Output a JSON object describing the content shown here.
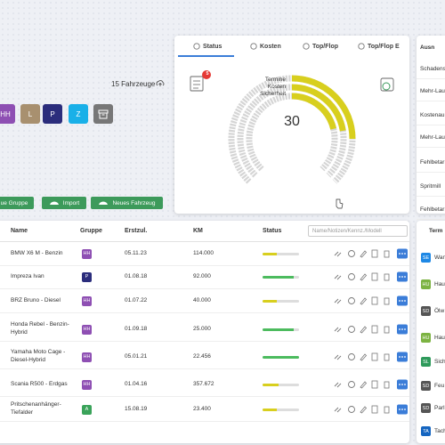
{
  "fleet_count": "15 Fahrzeuge",
  "groups": [
    {
      "label": "HH",
      "color": "#8e4fb3"
    },
    {
      "label": "L",
      "color": "#a8906f"
    },
    {
      "label": "P",
      "color": "#2b2d7c"
    },
    {
      "label": "Z",
      "color": "#19b0e8"
    }
  ],
  "actions": [
    "ue Gruppe",
    "Import",
    "Neues Fahrzeug"
  ],
  "tabs": [
    "Status",
    "Kosten",
    "Top/Flop",
    "Top/Flop E"
  ],
  "status_panel": {
    "badge": "5",
    "labels": [
      "Termine",
      "Kosten",
      "Sicherheit"
    ],
    "center": "30"
  },
  "exceptions": {
    "title": "Ausn",
    "items": [
      "Schadens",
      "Mehr-Lau",
      "Kostenau",
      "Mehr-Lau",
      "Fehlbetar",
      "Spritmill",
      "Fehlbetar"
    ]
  },
  "table": {
    "headers": [
      "Name",
      "Gruppe",
      "Erstzul.",
      "KM",
      "Status"
    ],
    "search_placeholder": "Name/Notizen/Kennz./Modell",
    "rows": [
      {
        "name": "BMW X6 M - Benzin",
        "group": "HH",
        "group_color": "#8e4fb3",
        "first_reg": "05.11.23",
        "km": "114.000",
        "status_color": "#d8cf1e"
      },
      {
        "name": "Impreza Ivan",
        "group": "P",
        "group_color": "#2b2d7c",
        "first_reg": "01.08.18",
        "km": "92.000",
        "status_color": "#4cbb5e"
      },
      {
        "name": "BRZ Bruno - Diesel",
        "group": "HH",
        "group_color": "#8e4fb3",
        "first_reg": "01.07.22",
        "km": "40.000",
        "status_color": "#d8cf1e"
      },
      {
        "name": "Honda Rebel - Benzin-Hybrid",
        "group": "HH",
        "group_color": "#8e4fb3",
        "first_reg": "01.09.18",
        "km": "25.000",
        "status_color": "#4cbb5e"
      },
      {
        "name": "Yamaha Moto Cage - Diesel-Hybrid",
        "group": "HH",
        "group_color": "#8e4fb3",
        "first_reg": "05.01.21",
        "km": "22.456",
        "status_color": "#4cbb5e"
      },
      {
        "name": "Scania R500 - Erdgas",
        "group": "HH",
        "group_color": "#8e4fb3",
        "first_reg": "01.04.16",
        "km": "357.672",
        "status_color": "#d8cf1e"
      },
      {
        "name": "Pritschenanhänger-Tiefalder",
        "group": "A",
        "group_color": "#3aa35a",
        "first_reg": "15.08.19",
        "km": "23.400",
        "status_color": "#d8cf1e"
      }
    ]
  },
  "appointments": {
    "title": "Term",
    "items": [
      {
        "code": "SE",
        "text": "Wan",
        "color": "#1e88e5"
      },
      {
        "code": "HU",
        "text": "Hau",
        "color": "#7cb342"
      },
      {
        "code": "SD",
        "text": "Ölw",
        "color": "#555555"
      },
      {
        "code": "HU",
        "text": "Hau",
        "color": "#7cb342"
      },
      {
        "code": "SL",
        "text": "Sich",
        "color": "#2e9a5b"
      },
      {
        "code": "SD",
        "text": "Feu",
        "color": "#555555"
      },
      {
        "code": "SD",
        "text": "Parl",
        "color": "#555555"
      },
      {
        "code": "TA",
        "text": "Tach",
        "color": "#1565c0"
      }
    ]
  }
}
